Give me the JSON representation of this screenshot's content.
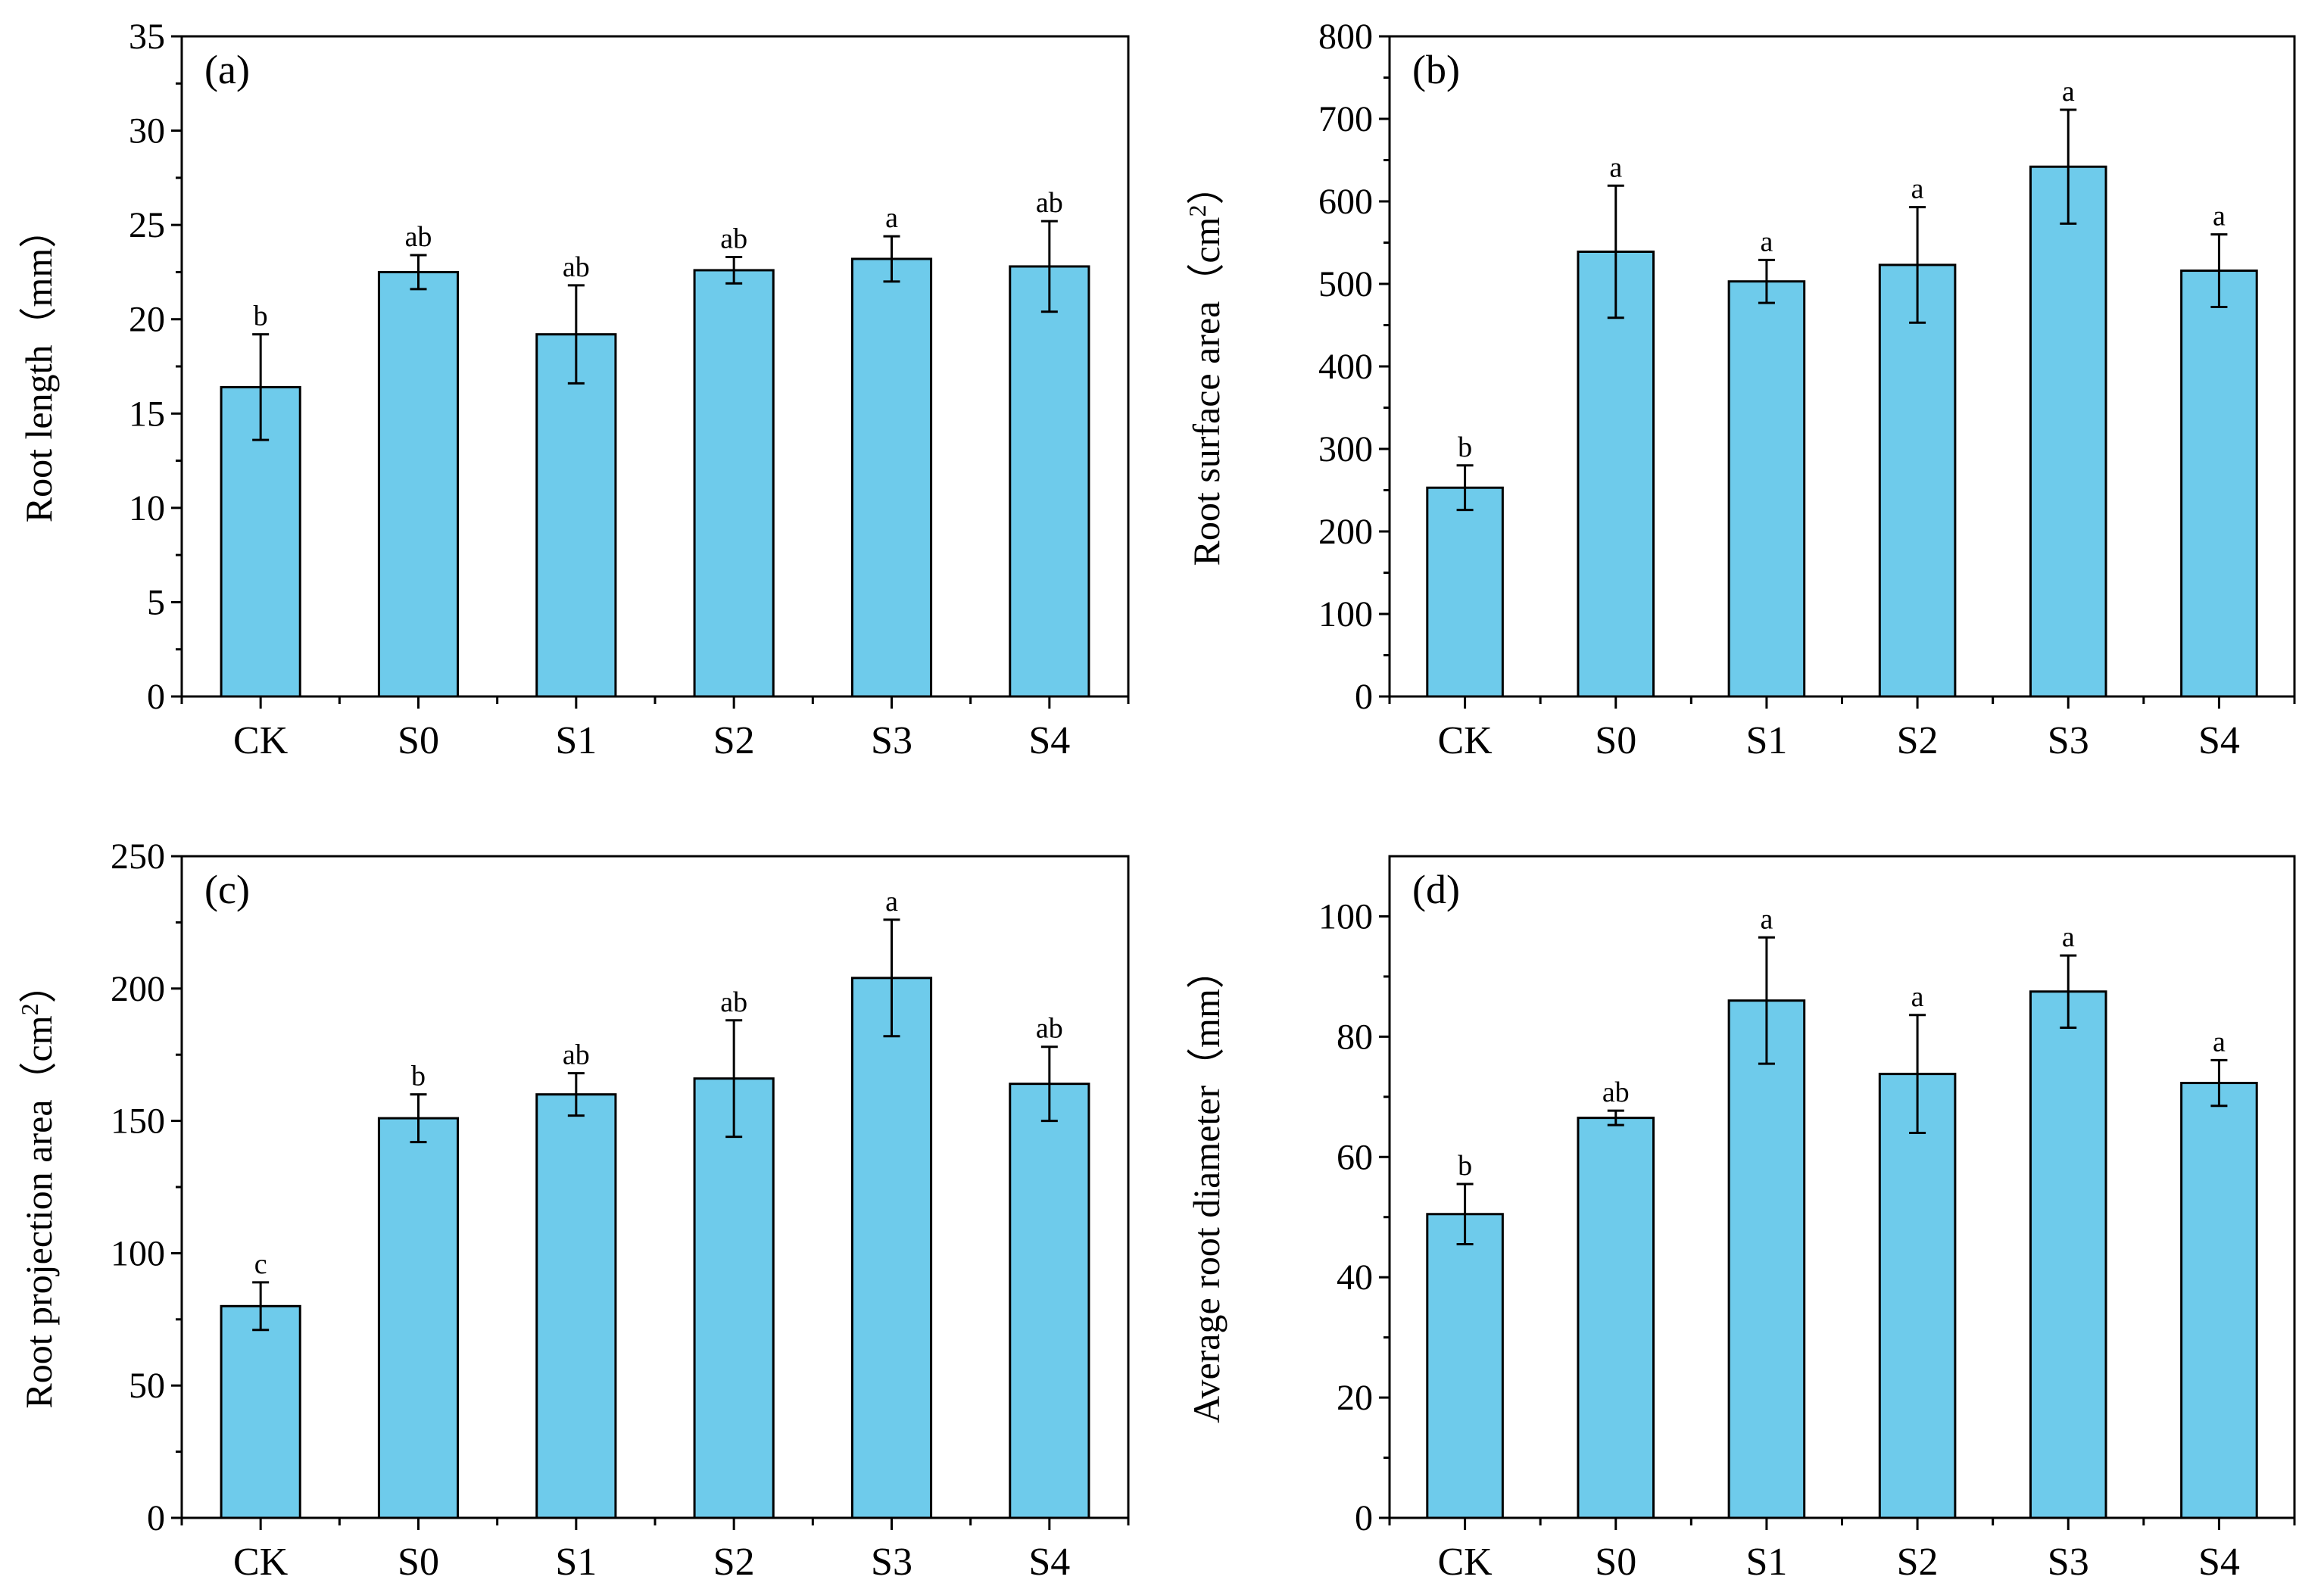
{
  "colors": {
    "bar": "#6ecbeb",
    "stroke": "#000000",
    "background": "#ffffff"
  },
  "chart_data": [
    {
      "type": "bar",
      "panel": "(a)",
      "title": "",
      "xlabel": "",
      "ylabel": "Root length（mm）",
      "ylabel_main": "Root length",
      "ylabel_unit": "（mm）",
      "ylabel_sup": "",
      "ylabel_close": "",
      "categories": [
        "CK",
        "S0",
        "S1",
        "S2",
        "S3",
        "S4"
      ],
      "values": [
        16.4,
        22.5,
        19.2,
        22.6,
        23.2,
        22.8
      ],
      "errors": [
        2.8,
        0.9,
        2.6,
        0.7,
        1.2,
        2.4
      ],
      "significance": [
        "b",
        "ab",
        "ab",
        "ab",
        "a",
        "ab"
      ],
      "ylim": [
        0,
        35
      ],
      "yticks": [
        0,
        5,
        10,
        15,
        20,
        25,
        30,
        35
      ],
      "ytick_labels": [
        "0",
        "5",
        "10",
        "15",
        "20",
        "25",
        "30",
        "35"
      ],
      "minor_step": 2.5
    },
    {
      "type": "bar",
      "panel": "(b)",
      "title": "",
      "xlabel": "",
      "ylabel": "Root surface area（cm2）",
      "ylabel_main": "Root surface area",
      "ylabel_unit": "（cm",
      "ylabel_sup": "2",
      "ylabel_close": "）",
      "categories": [
        "CK",
        "S0",
        "S1",
        "S2",
        "S3",
        "S4"
      ],
      "values": [
        253,
        539,
        503,
        523,
        642,
        516
      ],
      "errors": [
        27,
        80,
        26,
        70,
        69,
        44
      ],
      "significance": [
        "b",
        "a",
        "a",
        "a",
        "a",
        "a"
      ],
      "ylim": [
        0,
        800
      ],
      "yticks": [
        0,
        100,
        200,
        300,
        400,
        500,
        600,
        700,
        800
      ],
      "ytick_labels": [
        "0",
        "100",
        "200",
        "300",
        "400",
        "500",
        "600",
        "700",
        "800"
      ],
      "minor_step": 50
    },
    {
      "type": "bar",
      "panel": "(c)",
      "title": "",
      "xlabel": "",
      "ylabel": "Root projection area（cm2）",
      "ylabel_main": "Root projection area",
      "ylabel_unit": "（cm",
      "ylabel_sup": "2",
      "ylabel_close": "）",
      "categories": [
        "CK",
        "S0",
        "S1",
        "S2",
        "S3",
        "S4"
      ],
      "values": [
        80,
        151,
        160,
        166,
        204,
        164
      ],
      "errors": [
        9,
        9,
        8,
        22,
        22,
        14
      ],
      "significance": [
        "c",
        "b",
        "ab",
        "ab",
        "a",
        "ab"
      ],
      "ylim": [
        0,
        250
      ],
      "yticks": [
        0,
        50,
        100,
        150,
        200,
        250
      ],
      "ytick_labels": [
        "0",
        "50",
        "100",
        "150",
        "200",
        "250"
      ],
      "minor_step": 25
    },
    {
      "type": "bar",
      "panel": "(d)",
      "title": "",
      "xlabel": "",
      "ylabel": "Average root diameter（mm）",
      "ylabel_main": "Average root diameter",
      "ylabel_unit": "（mm）",
      "ylabel_sup": "",
      "ylabel_close": "",
      "categories": [
        "CK",
        "S0",
        "S1",
        "S2",
        "S3",
        "S4"
      ],
      "values": [
        50.5,
        66.5,
        86.0,
        73.8,
        87.5,
        72.3
      ],
      "errors": [
        5.0,
        1.2,
        10.5,
        9.8,
        6.0,
        3.8
      ],
      "significance": [
        "b",
        "ab",
        "a",
        "a",
        "a",
        "a"
      ],
      "ylim": [
        0,
        110
      ],
      "yticks": [
        0,
        20,
        40,
        60,
        80,
        100
      ],
      "ytick_labels": [
        "0",
        "20",
        "40",
        "60",
        "80",
        "100"
      ],
      "minor_step": 10
    }
  ]
}
